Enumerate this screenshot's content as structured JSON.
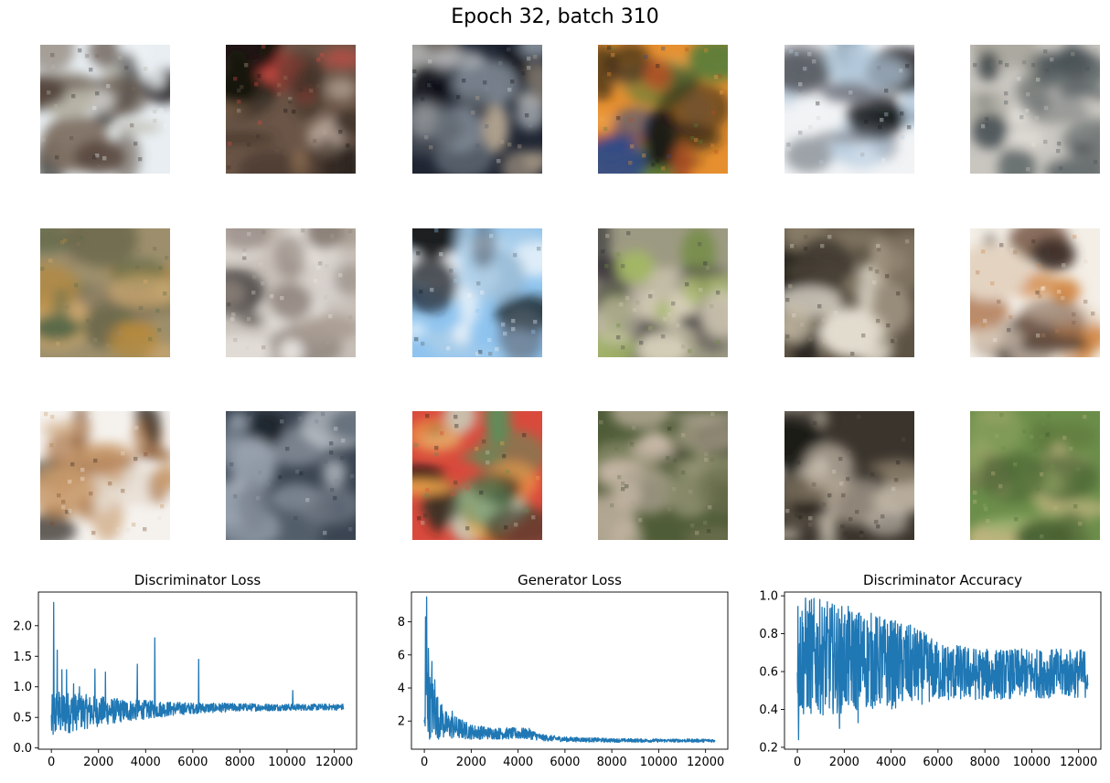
{
  "suptitle": "Epoch 32, batch 310",
  "samples": [
    {
      "id": "sample-1",
      "colors": [
        "#e8eef2",
        "#58493f",
        "#b9b6a8",
        "#2b2a2b",
        "#f3f7f9",
        "#7d6e62"
      ]
    },
    {
      "id": "sample-2",
      "colors": [
        "#6a5547",
        "#b8a79a",
        "#d94a44",
        "#3c3026",
        "#9c7a5a",
        "#14120f"
      ]
    },
    {
      "id": "sample-3",
      "colors": [
        "#1f2532",
        "#d5d9dc",
        "#5a5f66",
        "#0e1118",
        "#b5a58f",
        "#808a95"
      ]
    },
    {
      "id": "sample-4",
      "colors": [
        "#e68f2f",
        "#5b7d3a",
        "#2f4a8a",
        "#1d1a17",
        "#f0a650",
        "#b74d23"
      ]
    },
    {
      "id": "sample-5",
      "colors": [
        "#f1f3f5",
        "#cfd7de",
        "#9aa0a6",
        "#1a1b1f",
        "#7b7f88",
        "#b6ccdf"
      ]
    },
    {
      "id": "sample-6",
      "colors": [
        "#c9c6c0",
        "#6a7070",
        "#e7e4de",
        "#475055",
        "#a7a59b",
        "#3e4648"
      ]
    },
    {
      "id": "sample-7",
      "colors": [
        "#9d8f6c",
        "#b7893c",
        "#6f6b4f",
        "#d9b070",
        "#5b6a4a",
        "#8a7a62"
      ]
    },
    {
      "id": "sample-8",
      "colors": [
        "#c7bfb8",
        "#8a7f77",
        "#ece8e3",
        "#3a3634",
        "#a99d92",
        "#d7d1cc"
      ]
    },
    {
      "id": "sample-9",
      "colors": [
        "#8fc4ef",
        "#e4f2fb",
        "#151617",
        "#5a6470",
        "#f5f8fb",
        "#a9cde9"
      ]
    },
    {
      "id": "sample-10",
      "colors": [
        "#9d9a83",
        "#6f8b3c",
        "#2c2a30",
        "#d5cdb8",
        "#a3b765",
        "#514a4e"
      ]
    },
    {
      "id": "sample-11",
      "colors": [
        "#5d5344",
        "#c8bca7",
        "#2b2620",
        "#8a7e6a",
        "#e2dccf",
        "#403a31"
      ]
    },
    {
      "id": "sample-12",
      "colors": [
        "#f3eee6",
        "#d28846",
        "#3b2f2a",
        "#b17b55",
        "#7a5b48",
        "#e5d5c2"
      ]
    },
    {
      "id": "sample-13",
      "colors": [
        "#f5f2ee",
        "#7a4a26",
        "#ad7a4d",
        "#2e261f",
        "#e8dfd4",
        "#c89a6b"
      ]
    },
    {
      "id": "sample-14",
      "colors": [
        "#3b4552",
        "#9aa4b0",
        "#1c2129",
        "#d6dbe0",
        "#5a6673",
        "#7a838e"
      ]
    },
    {
      "id": "sample-15",
      "colors": [
        "#d94a3c",
        "#3b3628",
        "#f0a54a",
        "#5e8d5a",
        "#c8c9b6",
        "#1b1a16"
      ]
    },
    {
      "id": "sample-16",
      "colors": [
        "#4f5c38",
        "#8a8c6a",
        "#c7b8a6",
        "#2f3424",
        "#a89f8c",
        "#6b6f4c"
      ]
    },
    {
      "id": "sample-17",
      "colors": [
        "#3a342d",
        "#bfb5a4",
        "#7a6e5c",
        "#1c1a17",
        "#d9d2c5",
        "#5b5244"
      ]
    },
    {
      "id": "sample-18",
      "colors": [
        "#6b8e4a",
        "#9cb06f",
        "#4a6334",
        "#c0b580",
        "#5f7a3e",
        "#8aa05e"
      ]
    }
  ],
  "chart_data": [
    {
      "type": "line",
      "title": "Discriminator Loss",
      "xlim": [
        -550,
        12950
      ],
      "ylim": [
        -0.02,
        2.55
      ],
      "xticks": [
        0,
        2000,
        4000,
        6000,
        8000,
        10000,
        12000
      ],
      "xtick_labels": [
        "0",
        "2000",
        "4000",
        "6000",
        "8000",
        "10000",
        "12000"
      ],
      "yticks": [
        0.0,
        0.5,
        1.0,
        1.5,
        2.0
      ],
      "ytick_labels": [
        "0.0",
        "0.5",
        "1.0",
        "1.5",
        "2.0"
      ],
      "line_color": "#1f77b4",
      "x_max": 12400,
      "envelope": {
        "x": [
          0,
          100,
          200,
          500,
          1000,
          2000,
          3000,
          4000,
          5000,
          6000,
          8000,
          10000,
          12400
        ],
        "low": [
          0.05,
          0.08,
          0.12,
          0.2,
          0.28,
          0.35,
          0.42,
          0.47,
          0.52,
          0.56,
          0.6,
          0.61,
          0.62
        ],
        "high": [
          0.8,
          1.0,
          1.0,
          0.95,
          0.9,
          0.85,
          0.8,
          0.78,
          0.76,
          0.74,
          0.73,
          0.72,
          0.72
        ]
      },
      "spikes": [
        [
          100,
          2.38
        ],
        [
          250,
          1.6
        ],
        [
          450,
          1.28
        ],
        [
          650,
          1.28
        ],
        [
          950,
          1.05
        ],
        [
          1200,
          1.0
        ],
        [
          1850,
          1.29
        ],
        [
          2300,
          1.24
        ],
        [
          3650,
          1.37
        ],
        [
          4400,
          1.8
        ],
        [
          6250,
          1.45
        ],
        [
          10250,
          0.94
        ]
      ]
    },
    {
      "type": "line",
      "title": "Generator Loss",
      "xlim": [
        -550,
        12950
      ],
      "ylim": [
        0.3,
        9.8
      ],
      "xticks": [
        0,
        2000,
        4000,
        6000,
        8000,
        10000,
        12000
      ],
      "xtick_labels": [
        "0",
        "2000",
        "4000",
        "6000",
        "8000",
        "10000",
        "12000"
      ],
      "yticks": [
        2,
        4,
        6,
        8
      ],
      "ytick_labels": [
        "2",
        "4",
        "6",
        "8"
      ],
      "line_color": "#1f77b4",
      "x_max": 12400,
      "envelope": {
        "x": [
          0,
          100,
          200,
          400,
          700,
          1000,
          1500,
          2000,
          3000,
          4000,
          4500,
          5000,
          6000,
          8000,
          10000,
          12400
        ],
        "low": [
          0.5,
          0.8,
          0.9,
          0.9,
          0.9,
          0.9,
          0.9,
          0.9,
          0.9,
          0.9,
          0.9,
          0.8,
          0.75,
          0.72,
          0.72,
          0.72
        ],
        "high": [
          2.5,
          6.4,
          5.0,
          4.5,
          3.0,
          2.5,
          2.2,
          1.8,
          1.6,
          1.6,
          1.55,
          1.2,
          1.05,
          0.95,
          0.92,
          0.92
        ]
      },
      "spikes": [
        [
          60,
          8.3
        ],
        [
          100,
          9.5
        ],
        [
          180,
          6.4
        ],
        [
          320,
          5.6
        ],
        [
          450,
          4.5
        ],
        [
          750,
          3.0
        ],
        [
          1200,
          2.6
        ]
      ]
    },
    {
      "type": "line",
      "title": "Discriminator Accuracy",
      "xlim": [
        -550,
        12950
      ],
      "ylim": [
        0.19,
        1.02
      ],
      "xticks": [
        0,
        2000,
        4000,
        6000,
        8000,
        10000,
        12000
      ],
      "xtick_labels": [
        "0",
        "2000",
        "4000",
        "6000",
        "8000",
        "10000",
        "12000"
      ],
      "yticks": [
        0.2,
        0.4,
        0.6,
        0.8,
        1.0
      ],
      "ytick_labels": [
        "0.2",
        "0.4",
        "0.6",
        "0.8",
        "1.0"
      ],
      "line_color": "#1f77b4",
      "x_max": 12400,
      "envelope": {
        "x": [
          0,
          100,
          500,
          1000,
          2000,
          3000,
          4000,
          5000,
          6000,
          8000,
          10000,
          12400
        ],
        "low": [
          0.45,
          0.35,
          0.36,
          0.37,
          0.38,
          0.4,
          0.4,
          0.42,
          0.44,
          0.45,
          0.46,
          0.46
        ],
        "high": [
          1.0,
          1.0,
          1.0,
          0.98,
          0.95,
          0.92,
          0.88,
          0.84,
          0.76,
          0.72,
          0.72,
          0.72
        ]
      },
      "spikes": [
        [
          50,
          0.24
        ],
        [
          1800,
          0.3
        ],
        [
          2600,
          0.33
        ]
      ]
    }
  ]
}
